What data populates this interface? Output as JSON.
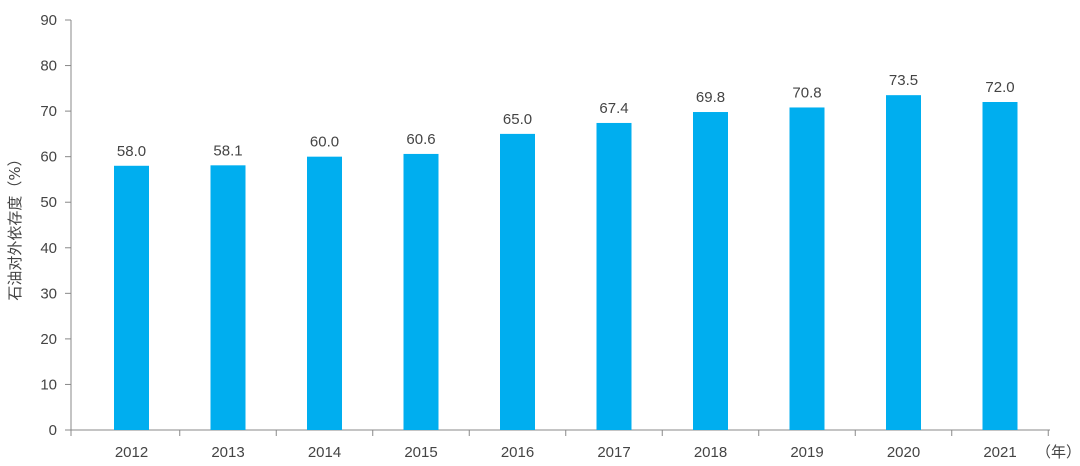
{
  "chart_data": {
    "type": "bar",
    "title": "",
    "xlabel": "",
    "ylabel": "石油对外依存度（%）",
    "x_unit": "（年）",
    "categories": [
      "2012",
      "2013",
      "2014",
      "2015",
      "2016",
      "2017",
      "2018",
      "2019",
      "2020",
      "2021"
    ],
    "values": [
      58.0,
      58.1,
      60.0,
      60.6,
      65.0,
      67.4,
      69.8,
      70.8,
      73.5,
      72.0
    ],
    "data_labels": [
      "58.0",
      "58.1",
      "60.0",
      "60.6",
      "65.0",
      "67.4",
      "69.8",
      "70.8",
      "73.5",
      "72.0"
    ],
    "yticks": [
      "0",
      "10",
      "20",
      "30",
      "40",
      "50",
      "60",
      "70",
      "80",
      "90"
    ],
    "ylim": [
      0,
      90
    ],
    "grid": false,
    "bar_color": "#00AEEF",
    "axis_color": "#888888"
  }
}
